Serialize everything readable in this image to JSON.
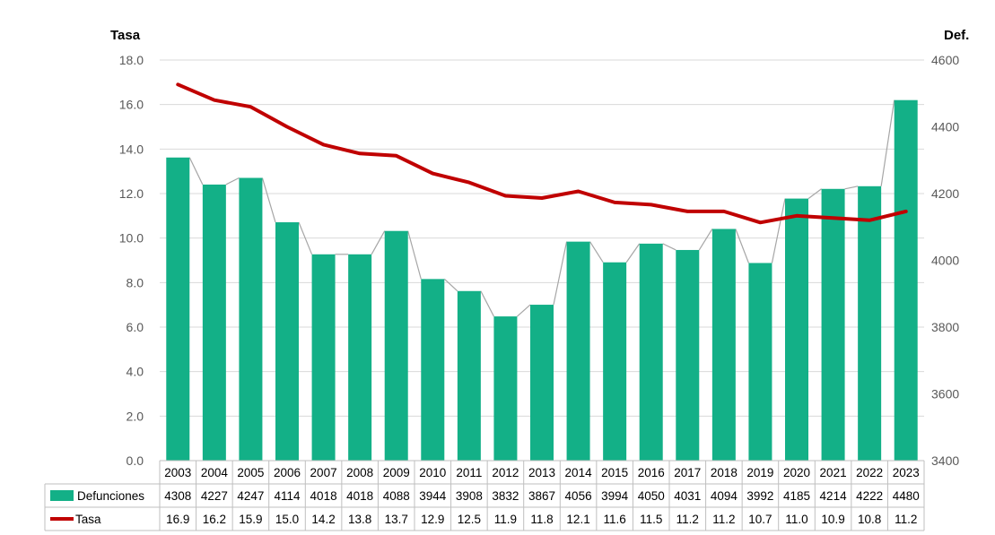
{
  "chart_data": {
    "type": "bar+line",
    "title": "",
    "y_left_label": "Tasa",
    "y_right_label": "Def.",
    "y_left_lim": [
      0,
      18
    ],
    "y_left_ticks": [
      "0.0",
      "2.0",
      "4.0",
      "6.0",
      "8.0",
      "10.0",
      "12.0",
      "14.0",
      "16.0",
      "18.0"
    ],
    "y_right_lim": [
      3400,
      4600
    ],
    "y_right_ticks": [
      "3400",
      "3600",
      "3800",
      "4000",
      "4200",
      "4400",
      "4600"
    ],
    "grid": true,
    "legend_placement": "data-table",
    "categories": [
      "2003",
      "2004",
      "2005",
      "2006",
      "2007",
      "2008",
      "2009",
      "2010",
      "2011",
      "2012",
      "2013",
      "2014",
      "2015",
      "2016",
      "2017",
      "2018",
      "2019",
      "2020",
      "2021",
      "2022",
      "2023"
    ],
    "series": [
      {
        "name": "Defunciones",
        "kind": "bar",
        "axis": "right",
        "color": "#13B087",
        "values": [
          4308,
          4227,
          4247,
          4114,
          4018,
          4018,
          4088,
          3944,
          3908,
          3832,
          3867,
          4056,
          3994,
          4050,
          4031,
          4094,
          3992,
          4185,
          4214,
          4222,
          4480
        ],
        "labels": [
          "4308",
          "4227",
          "4247",
          "4114",
          "4018",
          "4018",
          "4088",
          "3944",
          "3908",
          "3832",
          "3867",
          "4056",
          "3994",
          "4050",
          "4031",
          "4094",
          "3992",
          "4185",
          "4214",
          "4222",
          "4480"
        ]
      },
      {
        "name": "Tasa",
        "kind": "line",
        "axis": "left",
        "color": "#C00000",
        "values": [
          16.9,
          16.2,
          15.9,
          15.0,
          14.2,
          13.8,
          13.7,
          12.9,
          12.5,
          11.9,
          11.8,
          12.1,
          11.6,
          11.5,
          11.2,
          11.2,
          10.7,
          11.0,
          10.9,
          10.8,
          11.2
        ],
        "labels": [
          "16.9",
          "16.2",
          "15.9",
          "15.0",
          "14.2",
          "13.8",
          "13.7",
          "12.9",
          "12.5",
          "11.9",
          "11.8",
          "12.1",
          "11.6",
          "11.5",
          "11.2",
          "11.2",
          "10.7",
          "11.0",
          "10.9",
          "10.8",
          "11.2"
        ]
      }
    ],
    "colors": {
      "bar": "#13B087",
      "line": "#C00000",
      "connector": "#A6A6A6",
      "grid": "#D9D9D9",
      "table_border": "#BFBFBF"
    }
  }
}
